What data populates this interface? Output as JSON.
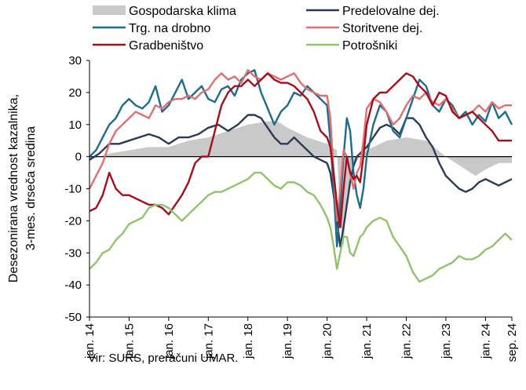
{
  "chart_data": {
    "type": "line",
    "ylabel": "Desezonirana vrednost kazalnika, 3-mes. drseča sredina",
    "ylim": [
      -50,
      30
    ],
    "yticks": [
      -50,
      -40,
      -30,
      -20,
      -10,
      0,
      10,
      20,
      30
    ],
    "x_tick_labels": [
      "jan. 14",
      "jan. 15",
      "jan. 16",
      "jan. 17",
      "jan. 18",
      "jan. 19",
      "jan. 20",
      "jan. 21",
      "jan. 22",
      "jan. 23",
      "jan. 24",
      "sep. 24"
    ],
    "x_tick_months": [
      0,
      12,
      24,
      36,
      48,
      60,
      72,
      84,
      96,
      108,
      120,
      128
    ],
    "x_range_months": [
      0,
      128
    ],
    "legend_placement": "top",
    "grid": false,
    "source": "Vir: SURS, preračuni UMAR.",
    "series": [
      {
        "name": "Gospodarska klima",
        "kind": "area",
        "color": "#c9c9c9",
        "x": [
          0,
          6,
          12,
          18,
          24,
          30,
          36,
          42,
          48,
          54,
          57,
          60,
          66,
          72,
          75,
          76,
          77,
          78,
          80,
          82,
          84,
          90,
          96,
          102,
          108,
          111,
          114,
          117,
          120,
          124,
          128
        ],
        "values": [
          -1,
          1,
          2,
          3,
          3,
          5,
          6,
          8,
          10,
          11,
          11,
          9,
          6,
          4,
          2,
          -20,
          -28,
          -12,
          -3,
          0,
          2,
          5,
          6,
          5,
          0,
          -2,
          -4,
          -6,
          -4,
          -2,
          -2
        ]
      },
      {
        "name": "Predelovalne dej.",
        "kind": "line",
        "color": "#2b3a55",
        "x": [
          0,
          3,
          6,
          9,
          12,
          15,
          18,
          21,
          24,
          27,
          30,
          33,
          36,
          39,
          42,
          45,
          48,
          50,
          52,
          54,
          56,
          58,
          60,
          62,
          64,
          66,
          68,
          70,
          72,
          73,
          74,
          75,
          76,
          77,
          78,
          79,
          80,
          81,
          82,
          84,
          86,
          88,
          90,
          92,
          94,
          96,
          98,
          100,
          102,
          104,
          106,
          108,
          110,
          112,
          114,
          116,
          118,
          120,
          122,
          124,
          126,
          128
        ],
        "values": [
          -1,
          1,
          4,
          4,
          5,
          6,
          7,
          6,
          4,
          6,
          6,
          7,
          9,
          10,
          8,
          10,
          13,
          13,
          12,
          9,
          6,
          4,
          4,
          6,
          4,
          2,
          0,
          -1,
          -2,
          -5,
          -12,
          -20,
          -28,
          -22,
          -15,
          -8,
          -3,
          0,
          1,
          3,
          6,
          9,
          10,
          9,
          7,
          12,
          12,
          10,
          6,
          3,
          -2,
          -6,
          -8,
          -10,
          -11,
          -10,
          -8,
          -7,
          -8,
          -9,
          -8,
          -7
        ]
      },
      {
        "name": "Trg. na drobno",
        "kind": "line",
        "color": "#1f6b8a",
        "x": [
          0,
          2,
          4,
          6,
          8,
          10,
          12,
          14,
          16,
          18,
          20,
          22,
          24,
          26,
          28,
          30,
          32,
          34,
          36,
          38,
          40,
          42,
          44,
          46,
          48,
          50,
          52,
          54,
          56,
          58,
          60,
          62,
          64,
          66,
          68,
          70,
          72,
          73,
          74,
          75,
          76,
          77,
          78,
          79,
          80,
          81,
          82,
          83,
          84,
          86,
          88,
          90,
          92,
          94,
          96,
          98,
          100,
          102,
          104,
          106,
          108,
          110,
          112,
          114,
          116,
          118,
          120,
          122,
          124,
          126,
          128
        ],
        "values": [
          0,
          2,
          6,
          10,
          12,
          16,
          18,
          16,
          15,
          17,
          22,
          14,
          16,
          20,
          24,
          18,
          20,
          22,
          18,
          17,
          21,
          22,
          19,
          24,
          26,
          27,
          20,
          15,
          10,
          14,
          16,
          20,
          19,
          22,
          20,
          18,
          16,
          5,
          -10,
          -28,
          -15,
          0,
          12,
          8,
          -5,
          -12,
          -16,
          -10,
          0,
          10,
          16,
          14,
          8,
          6,
          12,
          18,
          24,
          22,
          16,
          14,
          18,
          16,
          12,
          14,
          10,
          13,
          11,
          17,
          12,
          14,
          10
        ]
      },
      {
        "name": "Storitvene dej.",
        "kind": "line",
        "color": "#e07070",
        "x": [
          0,
          2,
          4,
          6,
          8,
          10,
          12,
          14,
          16,
          18,
          20,
          22,
          24,
          26,
          28,
          30,
          32,
          34,
          36,
          38,
          40,
          42,
          44,
          46,
          48,
          50,
          52,
          54,
          56,
          58,
          60,
          62,
          64,
          66,
          68,
          70,
          72,
          73,
          74,
          75,
          76,
          77,
          78,
          79,
          80,
          81,
          82,
          83,
          84,
          86,
          88,
          90,
          92,
          94,
          96,
          98,
          100,
          102,
          104,
          106,
          108,
          110,
          112,
          114,
          116,
          118,
          120,
          122,
          124,
          126,
          128
        ],
        "values": [
          -10,
          -6,
          -2,
          4,
          8,
          10,
          12,
          14,
          13,
          12,
          16,
          15,
          17,
          18,
          18,
          19,
          18,
          20,
          21,
          24,
          26,
          24,
          25,
          23,
          27,
          25,
          24,
          26,
          25,
          24,
          25,
          26,
          23,
          21,
          20,
          19,
          19,
          12,
          -5,
          -20,
          -10,
          2,
          0,
          -5,
          -10,
          -5,
          -3,
          5,
          15,
          18,
          17,
          14,
          10,
          12,
          16,
          19,
          18,
          20,
          17,
          16,
          18,
          15,
          12,
          13,
          14,
          16,
          14,
          17,
          15,
          16,
          16
        ]
      },
      {
        "name": "Gradbeništvo",
        "kind": "line",
        "color": "#a30f1c",
        "x": [
          0,
          2,
          4,
          6,
          8,
          10,
          12,
          14,
          16,
          18,
          20,
          22,
          24,
          26,
          28,
          30,
          32,
          34,
          36,
          38,
          40,
          42,
          44,
          46,
          48,
          50,
          52,
          54,
          56,
          58,
          60,
          62,
          64,
          66,
          68,
          70,
          72,
          73,
          74,
          75,
          76,
          77,
          78,
          79,
          80,
          81,
          82,
          83,
          84,
          86,
          88,
          90,
          92,
          94,
          96,
          98,
          100,
          102,
          104,
          106,
          108,
          110,
          112,
          114,
          116,
          118,
          120,
          122,
          124,
          126,
          128
        ],
        "values": [
          -17,
          -16,
          -12,
          -5,
          -10,
          -12,
          -12,
          -13,
          -14,
          -15,
          -15,
          -16,
          -18,
          -15,
          -12,
          -8,
          -2,
          0,
          0,
          8,
          16,
          20,
          22,
          22,
          24,
          22,
          24,
          26,
          24,
          23,
          23,
          22,
          20,
          18,
          14,
          8,
          6,
          3,
          -5,
          -15,
          -22,
          -10,
          0,
          -5,
          -7,
          -6,
          -8,
          0,
          10,
          18,
          20,
          20,
          22,
          24,
          26,
          25,
          22,
          20,
          16,
          20,
          19,
          14,
          12,
          13,
          14,
          12,
          10,
          8,
          5,
          5,
          5
        ]
      },
      {
        "name": "Potrošniki",
        "kind": "line",
        "color": "#8fc46a",
        "x": [
          0,
          2,
          4,
          6,
          8,
          10,
          12,
          14,
          16,
          18,
          20,
          22,
          24,
          26,
          28,
          30,
          32,
          34,
          36,
          38,
          40,
          42,
          44,
          46,
          48,
          50,
          52,
          54,
          56,
          58,
          60,
          62,
          64,
          66,
          68,
          70,
          72,
          73,
          74,
          75,
          76,
          77,
          78,
          79,
          80,
          81,
          82,
          83,
          84,
          86,
          88,
          90,
          92,
          94,
          96,
          98,
          100,
          102,
          104,
          106,
          108,
          110,
          112,
          114,
          116,
          118,
          120,
          122,
          124,
          126,
          128
        ],
        "values": [
          -35,
          -33,
          -30,
          -29,
          -26,
          -24,
          -21,
          -20,
          -19,
          -16,
          -15,
          -15,
          -16,
          -18,
          -20,
          -18,
          -16,
          -14,
          -12,
          -11,
          -11,
          -10,
          -9,
          -8,
          -7,
          -5,
          -5,
          -7,
          -9,
          -10,
          -8,
          -8,
          -9,
          -11,
          -12,
          -15,
          -19,
          -22,
          -28,
          -35,
          -30,
          -25,
          -25,
          -30,
          -31,
          -28,
          -25,
          -24,
          -22,
          -20,
          -19,
          -20,
          -25,
          -28,
          -31,
          -36,
          -39,
          -38,
          -37,
          -35,
          -34,
          -33,
          -31,
          -32,
          -32,
          -31,
          -29,
          -28,
          -26,
          -24,
          -26
        ]
      }
    ]
  }
}
